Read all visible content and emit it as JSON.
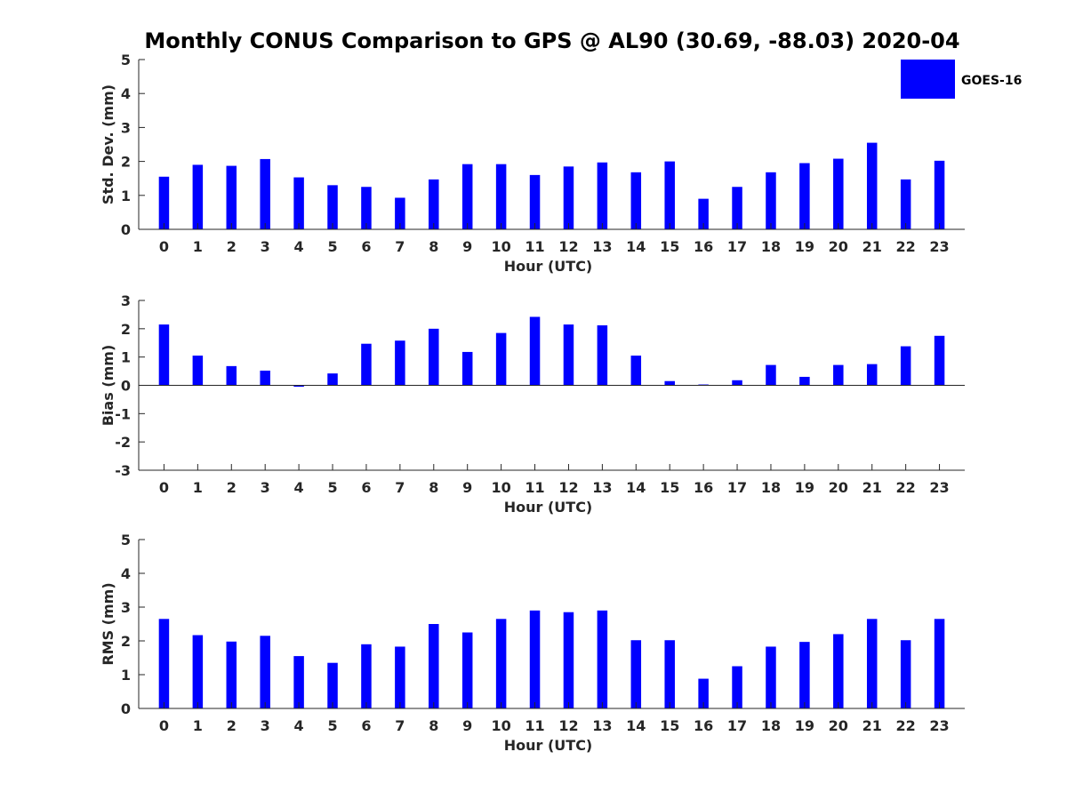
{
  "title": "Monthly CONUS Comparison to GPS @ AL90 (30.69, -88.03) 2020-04",
  "legend": {
    "label": "GOES-16",
    "color": "#0000ff",
    "placement": "top-right"
  },
  "chart_data": [
    {
      "type": "bar",
      "categories": [
        "0",
        "1",
        "2",
        "3",
        "4",
        "5",
        "6",
        "7",
        "8",
        "9",
        "10",
        "11",
        "12",
        "13",
        "14",
        "15",
        "16",
        "17",
        "18",
        "19",
        "20",
        "21",
        "22",
        "23"
      ],
      "series": [
        {
          "name": "GOES-16",
          "values": [
            1.55,
            1.9,
            1.87,
            2.07,
            1.53,
            1.3,
            1.25,
            0.93,
            1.47,
            1.92,
            1.92,
            1.6,
            1.85,
            1.97,
            1.68,
            2.0,
            0.9,
            1.25,
            1.68,
            1.95,
            2.08,
            2.55,
            1.47,
            2.02
          ]
        }
      ],
      "xlabel": "Hour (UTC)",
      "ylabel": "Std. Dev. (mm)",
      "ylim": [
        0,
        5
      ],
      "yticks": [
        "0",
        "1",
        "2",
        "3",
        "4",
        "5"
      ]
    },
    {
      "type": "bar",
      "categories": [
        "0",
        "1",
        "2",
        "3",
        "4",
        "5",
        "6",
        "7",
        "8",
        "9",
        "10",
        "11",
        "12",
        "13",
        "14",
        "15",
        "16",
        "17",
        "18",
        "19",
        "20",
        "21",
        "22",
        "23"
      ],
      "series": [
        {
          "name": "GOES-16",
          "values": [
            2.15,
            1.05,
            0.68,
            0.52,
            -0.05,
            0.42,
            1.47,
            1.58,
            2.0,
            1.18,
            1.85,
            2.42,
            2.15,
            2.12,
            1.05,
            0.15,
            0.03,
            0.18,
            0.72,
            0.3,
            0.72,
            0.75,
            1.38,
            1.75
          ]
        }
      ],
      "xlabel": "Hour (UTC)",
      "ylabel": "Bias (mm)",
      "ylim": [
        -3,
        3
      ],
      "yticks": [
        "-3",
        "-2",
        "-1",
        "0",
        "1",
        "2",
        "3"
      ]
    },
    {
      "type": "bar",
      "categories": [
        "0",
        "1",
        "2",
        "3",
        "4",
        "5",
        "6",
        "7",
        "8",
        "9",
        "10",
        "11",
        "12",
        "13",
        "14",
        "15",
        "16",
        "17",
        "18",
        "19",
        "20",
        "21",
        "22",
        "23"
      ],
      "series": [
        {
          "name": "GOES-16",
          "values": [
            2.65,
            2.17,
            1.98,
            2.15,
            1.55,
            1.35,
            1.9,
            1.83,
            2.5,
            2.25,
            2.65,
            2.9,
            2.85,
            2.9,
            2.02,
            2.02,
            0.88,
            1.25,
            1.83,
            1.97,
            2.2,
            2.65,
            2.02,
            2.65
          ]
        }
      ],
      "xlabel": "Hour (UTC)",
      "ylabel": "RMS (mm)",
      "ylim": [
        0,
        5
      ],
      "yticks": [
        "0",
        "1",
        "2",
        "3",
        "4",
        "5"
      ]
    }
  ]
}
